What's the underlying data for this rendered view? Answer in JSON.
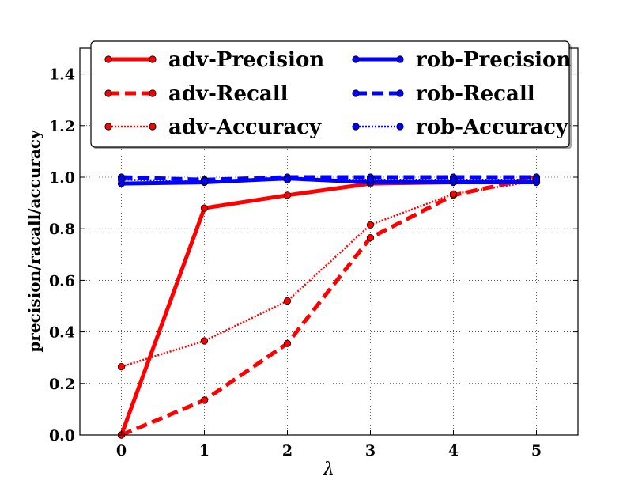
{
  "chart_data": {
    "type": "line",
    "x": [
      0,
      1,
      2,
      3,
      4,
      5
    ],
    "xlabel": "λ",
    "ylabel": "precision/racall/accuracy",
    "xlim": [
      -0.5,
      5.5
    ],
    "ylim": [
      0.0,
      1.5
    ],
    "xticks": [
      "0",
      "1",
      "2",
      "3",
      "4",
      "5"
    ],
    "yticks": [
      "0.0",
      "0.2",
      "0.4",
      "0.6",
      "0.8",
      "1.0",
      "1.2",
      "1.4"
    ],
    "grid": true,
    "legend_position": "top",
    "series": [
      {
        "name": "adv-Precision",
        "color": "#ff0000",
        "style": "solid",
        "values": [
          0.0,
          0.88,
          0.93,
          0.975,
          0.98,
          0.98
        ]
      },
      {
        "name": "adv-Recall",
        "color": "#ff0000",
        "style": "dashed",
        "values": [
          0.0,
          0.135,
          0.355,
          0.765,
          0.93,
          1.0
        ]
      },
      {
        "name": "adv-Accuracy",
        "color": "#ff0000",
        "style": "dotted",
        "values": [
          0.265,
          0.365,
          0.52,
          0.815,
          0.935,
          0.985
        ]
      },
      {
        "name": "rob-Precision",
        "color": "#0000ff",
        "style": "solid",
        "values": [
          0.975,
          0.98,
          0.995,
          0.98,
          0.98,
          0.98
        ]
      },
      {
        "name": "rob-Recall",
        "color": "#0000ff",
        "style": "dashed",
        "values": [
          1.0,
          0.99,
          1.0,
          1.0,
          1.0,
          1.0
        ]
      },
      {
        "name": "rob-Accuracy",
        "color": "#0000ff",
        "style": "dotted",
        "values": [
          0.99,
          0.985,
          0.99,
          0.99,
          0.99,
          0.99
        ]
      }
    ]
  }
}
